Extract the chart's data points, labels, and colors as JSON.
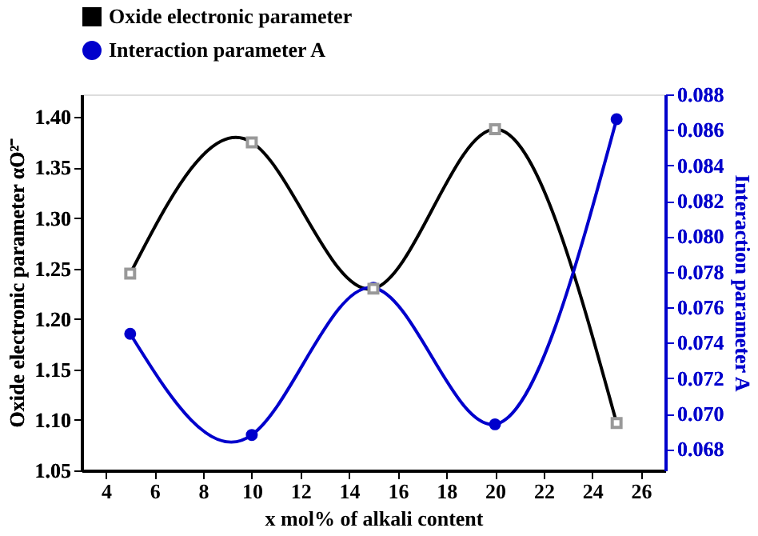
{
  "chart_data": {
    "type": "line",
    "xlabel": "x mol% of alkali content",
    "ylabel": "Oxide electronic parameter αO²⁻",
    "y2label": "Interaction parameter A",
    "x": [
      5,
      10,
      15,
      20,
      25
    ],
    "series": [
      {
        "name": "Oxide electronic parameter",
        "color": "#000000",
        "marker": "square",
        "values": [
          1.245,
          1.375,
          1.23,
          1.388,
          1.097
        ]
      },
      {
        "name": "Interaction parameter A",
        "color": "#0000cc",
        "marker": "circle",
        "axis": "y2",
        "values": [
          0.0745,
          0.0688,
          0.0771,
          0.0694,
          0.0866
        ]
      }
    ],
    "xlim": [
      3,
      27
    ],
    "xticks": [
      4,
      6,
      8,
      10,
      12,
      14,
      16,
      18,
      20,
      22,
      24,
      26
    ],
    "ylim": [
      1.05,
      1.4225
    ],
    "yticks": [
      1.05,
      {
        "value": 1.1,
        "label": "1.10"
      },
      1.15,
      {
        "value": 1.2,
        "label": "1.20"
      },
      1.25,
      {
        "value": 1.3,
        "label": "1.30"
      },
      1.35,
      {
        "value": 1.4,
        "label": "1.40"
      }
    ],
    "y2lim": [
      0.0668,
      0.088
    ],
    "y2ticks": [
      0.068,
      {
        "value": 0.07,
        "label": "0.070"
      },
      0.072,
      0.074,
      0.076,
      0.078,
      {
        "value": 0.08,
        "label": "0.080"
      },
      0.082,
      0.084,
      0.086,
      0.088
    ],
    "grid": false,
    "legend": "top",
    "line_style": "solid"
  }
}
